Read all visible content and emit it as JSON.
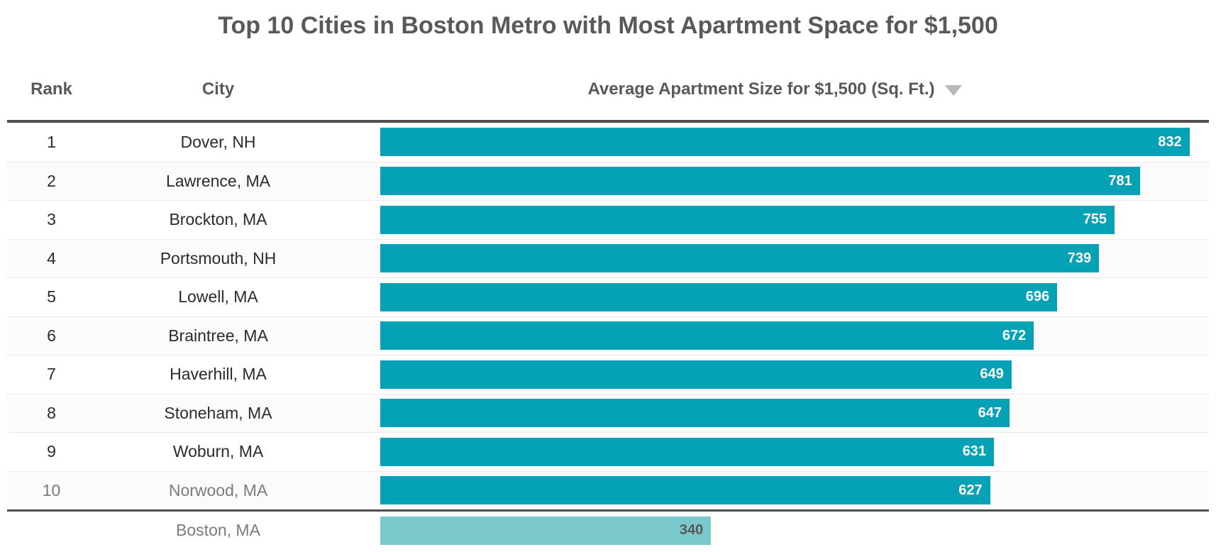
{
  "title": "Top 10 Cities in Boston Metro with Most Apartment Space for $1,500",
  "colors": {
    "bar": "#04a2b4",
    "comparison_bar": "#7cc9cd",
    "title_text": "#595959",
    "header_text": "#595959",
    "row_text": "#2b2b2b",
    "muted_text": "#7b7b7b",
    "value_text": "#ffffff",
    "comparison_value_text": "#595959",
    "sort_arrow": "#b9b9b9",
    "rule": "#4f4f4f",
    "separator": "#ebebeb",
    "stripe": "#fbfbfb"
  },
  "table": {
    "headers": {
      "rank": "Rank",
      "city": "City",
      "size": "Average Apartment Size for $1,500 (Sq. Ft.)"
    },
    "sort": {
      "column": "size",
      "direction": "descending",
      "icon": "triangle-down"
    },
    "max_value": 832,
    "rows": [
      {
        "rank": "1",
        "city": "Dover, NH",
        "value": 832
      },
      {
        "rank": "2",
        "city": "Lawrence, MA",
        "value": 781
      },
      {
        "rank": "3",
        "city": "Brockton, MA",
        "value": 755
      },
      {
        "rank": "4",
        "city": "Portsmouth, NH",
        "value": 739
      },
      {
        "rank": "5",
        "city": "Lowell, MA",
        "value": 696
      },
      {
        "rank": "6",
        "city": "Braintree, MA",
        "value": 672
      },
      {
        "rank": "7",
        "city": "Haverhill, MA",
        "value": 649
      },
      {
        "rank": "8",
        "city": "Stoneham, MA",
        "value": 647
      },
      {
        "rank": "9",
        "city": "Woburn, MA",
        "value": 631
      },
      {
        "rank": "10",
        "city": "Norwood, MA",
        "value": 627,
        "muted": true
      },
      {
        "rank": "",
        "city": "Boston, MA",
        "value": 340,
        "muted": true,
        "comparison": true
      }
    ]
  },
  "chart_data": {
    "type": "bar",
    "orientation": "horizontal",
    "title": "Top 10 Cities in Boston Metro with Most Apartment Space for $1,500",
    "categories": [
      "Dover, NH",
      "Lawrence, MA",
      "Brockton, MA",
      "Portsmouth, NH",
      "Lowell, MA",
      "Braintree, MA",
      "Haverhill, MA",
      "Stoneham, MA",
      "Woburn, MA",
      "Norwood, MA",
      "Boston, MA"
    ],
    "values": [
      832,
      781,
      755,
      739,
      696,
      672,
      649,
      647,
      631,
      627,
      340
    ],
    "ranks": [
      1,
      2,
      3,
      4,
      5,
      6,
      7,
      8,
      9,
      10,
      null
    ],
    "xlabel": "Average Apartment Size for $1,500 (Sq. Ft.)",
    "ylabel": "City",
    "xlim": [
      0,
      845
    ],
    "grid": false,
    "legend": false,
    "data_labels": "inside-end",
    "sorted": "descending",
    "comparison_row": {
      "category": "Boston, MA",
      "value": 340,
      "style": "light-teal"
    }
  }
}
